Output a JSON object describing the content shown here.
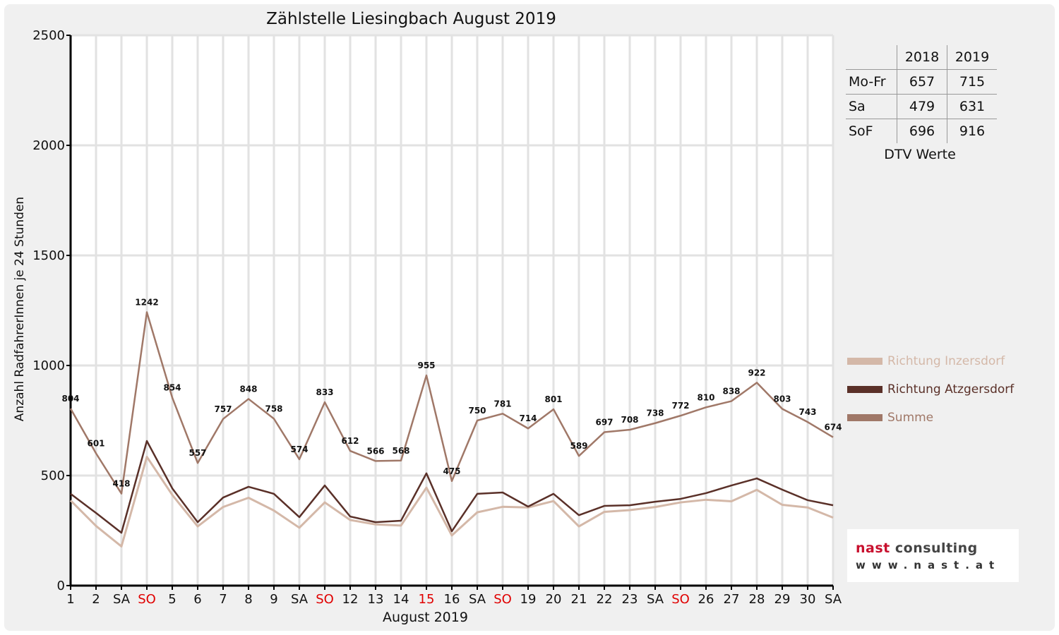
{
  "chart_data": {
    "type": "line",
    "title": "Zählstelle Liesingbach August 2019",
    "xlabel": "August 2019",
    "ylabel": "Anzahl RadfahrerInnen je 24 Stunden",
    "ylim": [
      0,
      2500
    ],
    "yticks": [
      0,
      500,
      1000,
      1500,
      2000,
      2500
    ],
    "grid": true,
    "legend_position": "right",
    "categories": [
      "1",
      "2",
      "SA",
      "SO",
      "5",
      "6",
      "7",
      "8",
      "9",
      "SA",
      "SO",
      "12",
      "13",
      "14",
      "15",
      "16",
      "SA",
      "SO",
      "19",
      "20",
      "21",
      "22",
      "23",
      "SA",
      "SO",
      "26",
      "27",
      "28",
      "29",
      "30",
      "SA"
    ],
    "highlight_categories": [
      3,
      10,
      14,
      17,
      24
    ],
    "highlight_color": "#e00000",
    "series": [
      {
        "name": "Richtung Inzersdorf",
        "color": "#d4b8a8",
        "values": [
          387,
          271,
          178,
          585,
          412,
          269,
          357,
          399,
          341,
          263,
          378,
          298,
          278,
          273,
          445,
          228,
          333,
          358,
          355,
          384,
          269,
          335,
          343,
          357,
          378,
          390,
          383,
          435,
          367,
          355,
          309
        ]
      },
      {
        "name": "Richtung Atzgersdorf",
        "color": "#5a3028",
        "values": [
          417,
          330,
          240,
          657,
          442,
          288,
          400,
          449,
          417,
          311,
          455,
          314,
          288,
          295,
          510,
          247,
          417,
          423,
          359,
          417,
          320,
          362,
          365,
          381,
          394,
          420,
          455,
          487,
          436,
          388,
          365
        ]
      },
      {
        "name": "Summe",
        "color": "#a07868",
        "values": [
          804,
          601,
          418,
          1242,
          854,
          557,
          757,
          848,
          758,
          574,
          833,
          612,
          566,
          568,
          955,
          475,
          750,
          781,
          714,
          801,
          589,
          697,
          708,
          738,
          772,
          810,
          838,
          922,
          803,
          743,
          674
        ],
        "labels": true
      }
    ]
  },
  "dtv_table": {
    "headers": [
      "2018",
      "2019"
    ],
    "rows": [
      {
        "label": "Mo-Fr",
        "v2018": "657",
        "v2019": "715"
      },
      {
        "label": "Sa",
        "v2018": "479",
        "v2019": "631"
      },
      {
        "label": "SoF",
        "v2018": "696",
        "v2019": "916"
      }
    ],
    "caption": "DTV Werte"
  },
  "logo": {
    "line1a": "nast",
    "line1b": "consulting",
    "line2": "www.nast.at"
  }
}
